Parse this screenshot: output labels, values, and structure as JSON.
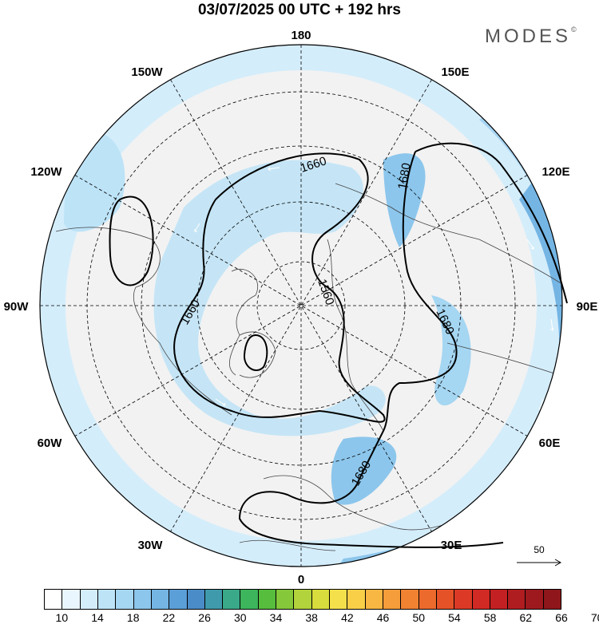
{
  "title": "03/07/2025  00 UTC  + 192 hrs",
  "brand": {
    "name": "MODES",
    "mark": "©"
  },
  "map": {
    "projection": "north-polar-stereographic",
    "longitude_labels": [
      "180",
      "150E",
      "120E",
      "90E",
      "60E",
      "30E",
      "0",
      "30W",
      "60W",
      "90W",
      "120W",
      "150W"
    ],
    "contours": [
      {
        "label": "1660"
      },
      {
        "label": "1680"
      },
      {
        "label": "1560"
      },
      {
        "label": "1660"
      },
      {
        "label": "1680"
      },
      {
        "label": "1680"
      }
    ],
    "colors": {
      "land": "#f2f2f2",
      "wind_light": "#d7eefa",
      "wind_mid": "#a6d4f2",
      "wind_strong": "#5b9fd8",
      "contour": "#000000"
    }
  },
  "vector_reference": {
    "label": "50"
  },
  "colorbar": {
    "tick_labels": [
      "10",
      "14",
      "18",
      "22",
      "26",
      "30",
      "34",
      "38",
      "42",
      "46",
      "50",
      "54",
      "58",
      "62",
      "66",
      "70"
    ],
    "colors": [
      "#ffffff",
      "#eaf6fd",
      "#d4edfb",
      "#bde3f7",
      "#a5d6f2",
      "#8cc6ec",
      "#74b5e4",
      "#5b9fd8",
      "#4a8cc8",
      "#3f9bab",
      "#3aa98a",
      "#3cb55c",
      "#56bd3d",
      "#85c83a",
      "#b2d33b",
      "#d9dc3d",
      "#f4e04b",
      "#f9cf48",
      "#f8b742",
      "#f59d3a",
      "#f18232",
      "#ec6a2c",
      "#e55228",
      "#dc3a26",
      "#d12924",
      "#c22022",
      "#b01d20",
      "#9e191d",
      "#8f171b"
    ]
  }
}
